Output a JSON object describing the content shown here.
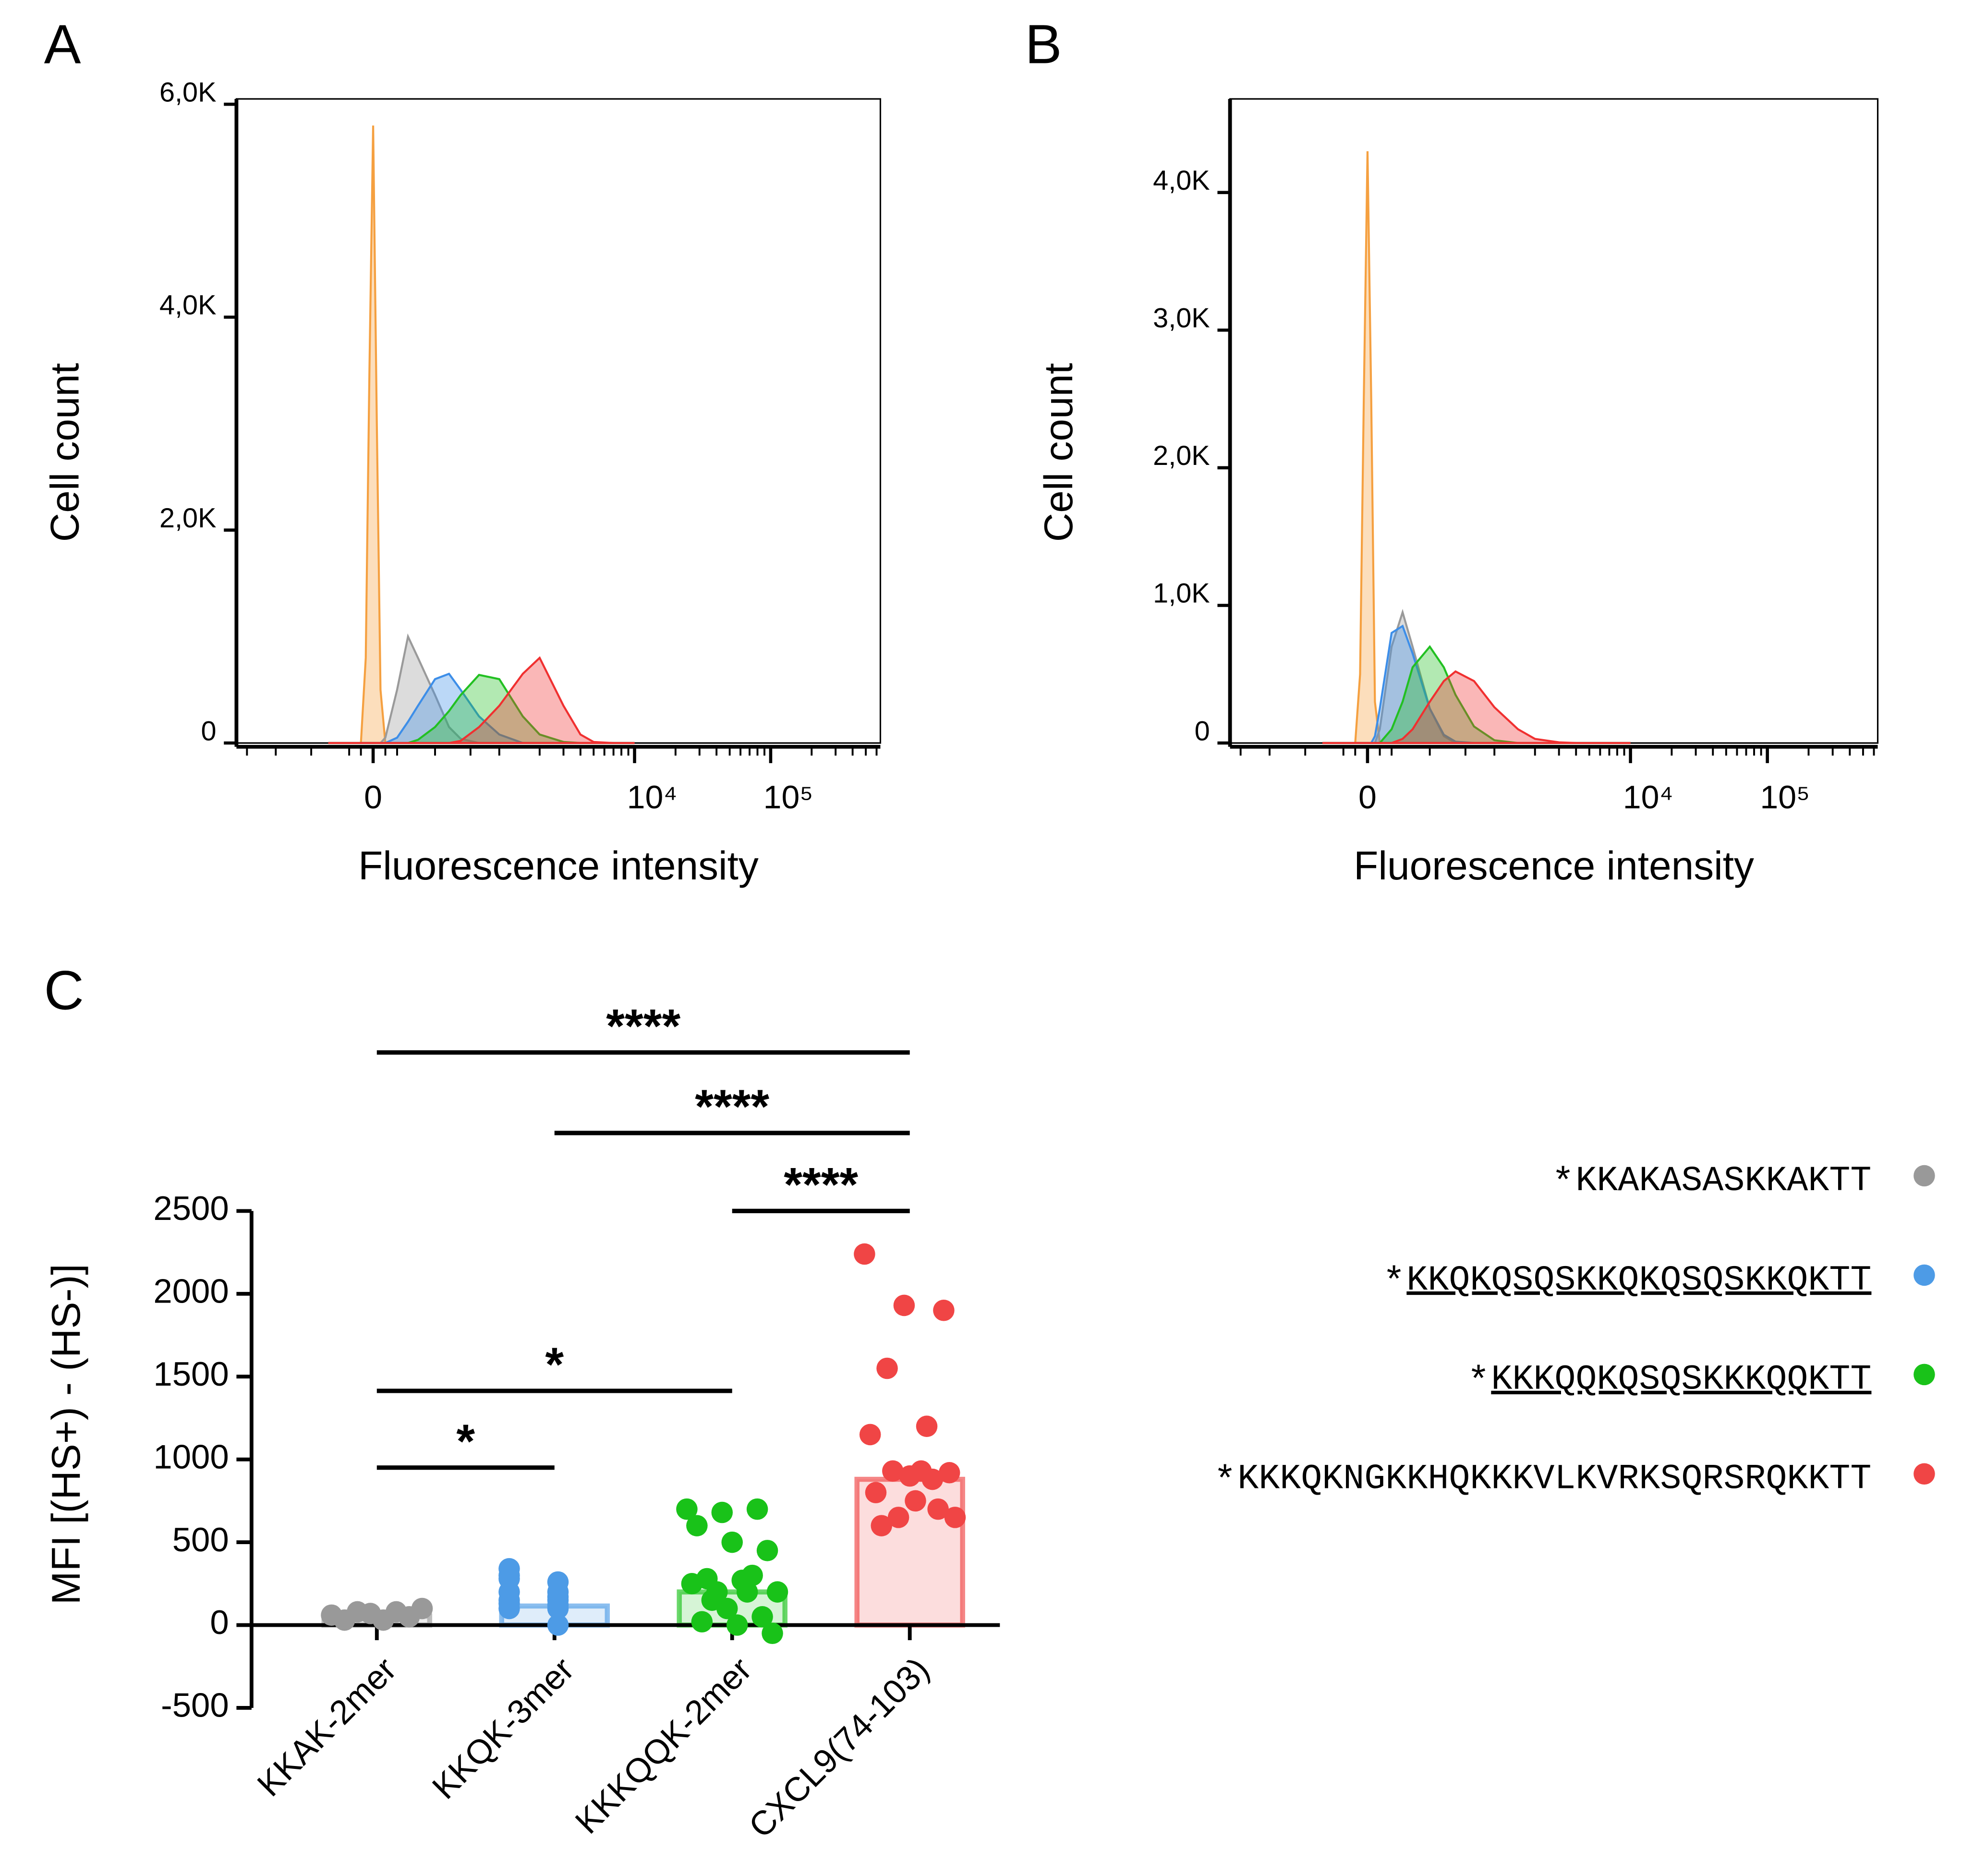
{
  "chart_data": [
    {
      "type": "area",
      "panel_label": "A",
      "xlabel": "Fluorescence intensity",
      "ylabel": "Cell count",
      "xscale": "biexponential",
      "x": [
        -200,
        -100,
        -50,
        -30,
        -15,
        0,
        15,
        30,
        50,
        100,
        150,
        200,
        300,
        400,
        500,
        700,
        1000,
        1500,
        2000,
        3000,
        4000,
        5000,
        7000,
        10000
      ],
      "xlim": [
        -1200,
        640000
      ],
      "xticks": [
        0,
        {
          "value": 10000,
          "label": "10⁴"
        },
        {
          "value": 100000,
          "label": "10⁵"
        }
      ],
      "xminorticks": [
        -1000,
        -600,
        -300,
        -100,
        -50,
        50,
        100,
        300,
        600,
        1000,
        2000,
        3000,
        4000,
        5000,
        6000,
        7000,
        8000,
        9000,
        20000,
        30000,
        40000,
        50000,
        60000,
        70000,
        80000,
        90000,
        200000,
        300000,
        400000,
        500000,
        600000
      ],
      "ylim": [
        0,
        6050
      ],
      "yticks": [
        0,
        {
          "value": 2000,
          "label": "2,0K"
        },
        {
          "value": 4000,
          "label": "4,0K"
        },
        {
          "value": 6000,
          "label": "6,0K"
        }
      ],
      "series": [
        {
          "color": "#f5a040",
          "values": [
            0,
            0,
            0,
            800,
            3500,
            5800,
            3000,
            500,
            0,
            0,
            0,
            0,
            0,
            0,
            0,
            0,
            0,
            0,
            0,
            0,
            0,
            0,
            0,
            0
          ]
        },
        {
          "color": "#9a9a9a",
          "values": [
            0,
            0,
            0,
            0,
            0,
            0,
            0,
            0,
            50,
            500,
            1000,
            800,
            450,
            150,
            40,
            0,
            0,
            0,
            0,
            0,
            0,
            0,
            0,
            0
          ]
        },
        {
          "color": "#3d8ee8",
          "values": [
            0,
            0,
            0,
            0,
            0,
            0,
            0,
            0,
            0,
            50,
            200,
            350,
            600,
            650,
            500,
            250,
            80,
            0,
            0,
            0,
            0,
            0,
            0,
            0
          ]
        },
        {
          "color": "#22c022",
          "values": [
            0,
            0,
            0,
            0,
            0,
            0,
            0,
            0,
            0,
            0,
            0,
            30,
            150,
            300,
            450,
            640,
            600,
            250,
            80,
            10,
            0,
            0,
            0,
            0
          ]
        },
        {
          "color": "#f03030",
          "values": [
            0,
            0,
            0,
            0,
            0,
            0,
            0,
            0,
            0,
            0,
            0,
            0,
            0,
            0,
            20,
            150,
            350,
            650,
            800,
            350,
            80,
            10,
            0,
            0
          ]
        }
      ]
    },
    {
      "type": "area",
      "panel_label": "B",
      "xlabel": "Fluorescence intensity",
      "ylabel": "Cell count",
      "xscale": "biexponential",
      "x": [
        -200,
        -100,
        -50,
        -30,
        -15,
        0,
        15,
        30,
        50,
        100,
        150,
        200,
        300,
        400,
        500,
        700,
        1000,
        1500,
        2000,
        3000,
        4000,
        5000,
        7000,
        10000
      ],
      "xlim": [
        -1200,
        640000
      ],
      "xticks": [
        0,
        {
          "value": 10000,
          "label": "10⁴"
        },
        {
          "value": 100000,
          "label": "10⁵"
        }
      ],
      "xminorticks": [
        -1000,
        -600,
        -300,
        -100,
        -50,
        50,
        100,
        300,
        600,
        1000,
        2000,
        3000,
        4000,
        5000,
        6000,
        7000,
        8000,
        9000,
        20000,
        30000,
        40000,
        50000,
        60000,
        70000,
        80000,
        90000,
        200000,
        300000,
        400000,
        500000,
        600000
      ],
      "ylim": [
        0,
        4680
      ],
      "yticks": [
        0,
        {
          "value": 1000,
          "label": "1,0K"
        },
        {
          "value": 2000,
          "label": "2,0K"
        },
        {
          "value": 3000,
          "label": "3,0K"
        },
        {
          "value": 4000,
          "label": "4,0K"
        }
      ],
      "series": [
        {
          "color": "#f5a040",
          "values": [
            0,
            0,
            0,
            500,
            2500,
            4300,
            2500,
            300,
            0,
            0,
            0,
            0,
            0,
            0,
            0,
            0,
            0,
            0,
            0,
            0,
            0,
            0,
            0,
            0
          ]
        },
        {
          "color": "#9a9a9a",
          "values": [
            0,
            0,
            0,
            0,
            0,
            0,
            0,
            0,
            100,
            700,
            950,
            700,
            250,
            50,
            0,
            0,
            0,
            0,
            0,
            0,
            0,
            0,
            0,
            0
          ]
        },
        {
          "color": "#3d8ee8",
          "values": [
            0,
            0,
            0,
            0,
            0,
            0,
            0,
            50,
            250,
            800,
            850,
            650,
            250,
            60,
            10,
            0,
            0,
            0,
            0,
            0,
            0,
            0,
            0,
            0
          ]
        },
        {
          "color": "#22c022",
          "values": [
            0,
            0,
            0,
            0,
            0,
            0,
            0,
            0,
            0,
            100,
            300,
            550,
            700,
            550,
            350,
            120,
            20,
            0,
            0,
            0,
            0,
            0,
            0,
            0
          ]
        },
        {
          "color": "#f03030",
          "values": [
            0,
            0,
            0,
            0,
            0,
            0,
            0,
            0,
            0,
            0,
            30,
            100,
            300,
            450,
            520,
            450,
            260,
            100,
            30,
            5,
            0,
            0,
            0,
            0
          ]
        }
      ]
    },
    {
      "type": "dot-bar",
      "panel_label": "C",
      "ylabel": "MFI [(HS+) - (HS-)]",
      "ylim": [
        -500,
        2500
      ],
      "yticks": [
        -500,
        0,
        500,
        1000,
        1500,
        2000,
        2500
      ],
      "groups": [
        {
          "category": "KKAK-2mer",
          "marker": "*",
          "sequence": "KKAKASASKKAKTT",
          "color": "#999999",
          "bar": 55,
          "values": [
            60,
            100,
            50,
            80,
            30,
            70,
            80,
            30
          ]
        },
        {
          "category": "KKQK-3mer",
          "marker": "*",
          "sequence": "KKQKQSQSKKQKQSQSKKQKTT",
          "color": "#4d9be6",
          "bar": 115,
          "values": [
            340,
            170,
            130,
            260,
            280,
            200,
            300,
            100,
            150,
            120,
            200,
            150,
            100,
            0
          ]
        },
        {
          "category": "KKKQQK-2mer",
          "marker": "*",
          "sequence": "KKKQQKQSQSKKKQQKTT",
          "color": "#19c219",
          "bar": 200,
          "values": [
            700,
            680,
            700,
            600,
            500,
            450,
            280,
            270,
            200,
            200,
            300,
            250,
            100,
            50,
            20,
            0,
            -50,
            150,
            200
          ]
        },
        {
          "category": "CXCL9(74-103)",
          "marker": "*",
          "sequence": "KKKQKNGKKHQKKKVLKVRKSQRSRQKKTT",
          "color": "#f04545",
          "bar": 880,
          "values": [
            2240,
            1930,
            1900,
            1550,
            1200,
            1150,
            900,
            920,
            930,
            880,
            800,
            750,
            650,
            650,
            700,
            600,
            930
          ]
        }
      ],
      "significance": [
        {
          "groups": [
            "KKAK-2mer",
            "CXCL9(74-103)"
          ],
          "label": "****"
        },
        {
          "groups": [
            "KKQK-3mer",
            "CXCL9(74-103)"
          ],
          "label": "****"
        },
        {
          "groups": [
            "KKKQQK-2mer",
            "CXCL9(74-103)"
          ],
          "label": "****"
        },
        {
          "groups": [
            "KKAK-2mer",
            "KKKQQK-2mer"
          ],
          "label": "*"
        },
        {
          "groups": [
            "KKAK-2mer",
            "KKQK-3mer"
          ],
          "label": "*"
        }
      ]
    }
  ]
}
